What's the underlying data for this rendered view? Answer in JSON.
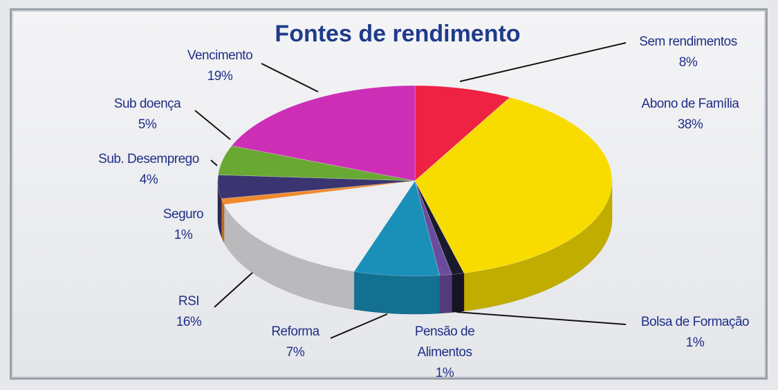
{
  "chart_data": {
    "type": "pie",
    "title": "Fontes de rendimento",
    "categories": [
      "Sem rendimentos",
      "Abono de Família",
      "Bolsa de Formação",
      "Pensão de Alimentos",
      "Reforma",
      "RSI",
      "Seguro",
      "Sub. Desemprego",
      "Sub doença",
      "Vencimento"
    ],
    "values": [
      8,
      38,
      1,
      1,
      7,
      16,
      1,
      4,
      5,
      19
    ],
    "value_labels": [
      "8%",
      "38%",
      "1%",
      "1%",
      "7%",
      "16%",
      "1%",
      "4%",
      "5%",
      "19%"
    ],
    "colors": [
      "#ee2243",
      "#f8dc00",
      "#1a1a2e",
      "#6a4c9c",
      "#1a8fb8",
      "#eeeef2",
      "#f08a30",
      "#3a3470",
      "#6aa834",
      "#cc2fb6"
    ]
  }
}
